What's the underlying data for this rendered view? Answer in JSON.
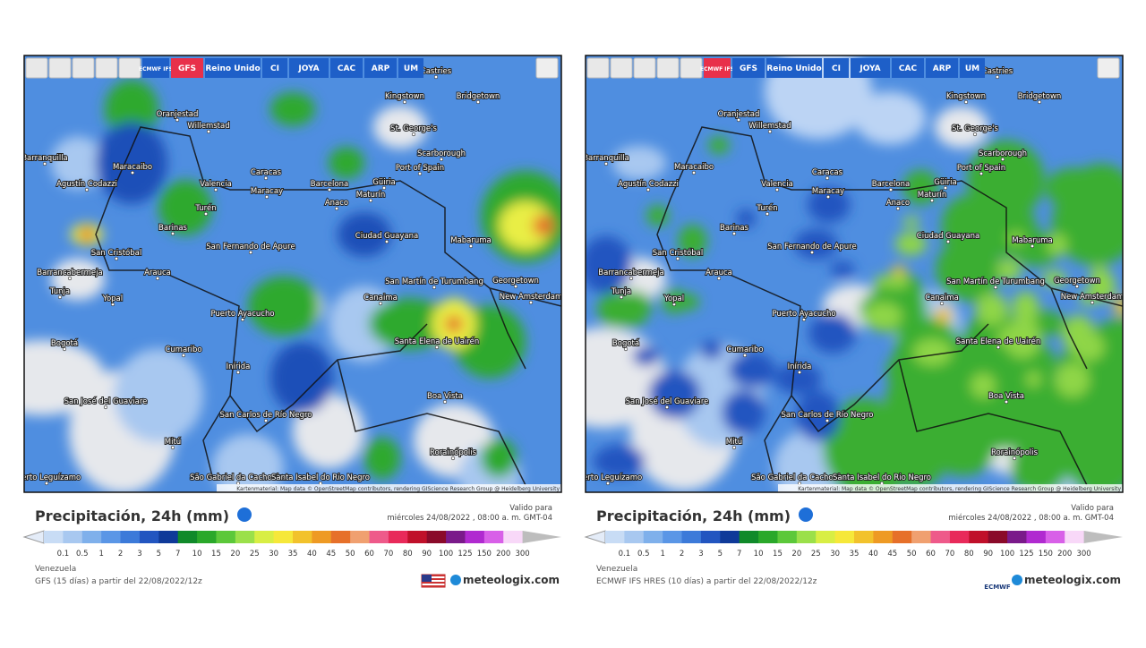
{
  "cities": [
    "Castries",
    "Kingstown",
    "Bridgetown",
    "Oranjestad",
    "Willemstad",
    "St. George's",
    "Scarborough",
    "Barranquilla",
    "Maracaibo",
    "Port of Spain",
    "Agustín Codazzi",
    "Caracas",
    "Valencia",
    "Maracay",
    "Barcelona",
    "Güiria",
    "Maturín",
    "Turén",
    "Anaco",
    "Barinas",
    "Ciudad Guayana",
    "Mabaruma",
    "San Cristóbal",
    "San Fernando de Apure",
    "Barrancabermeja",
    "Arauca",
    "San Martín de Turumbang",
    "Georgetown",
    "Canaima",
    "New Amsterdam",
    "Tunja",
    "Yopal",
    "Puerto Ayacucho",
    "Bogotá",
    "Santa Elena de Uairén",
    "Cumaribo",
    "Inírida",
    "Boa Vista",
    "San José del Guaviare",
    "San Carlos de Río Negro",
    "Mitú",
    "Rorainópolis",
    "São Gabriel da Cachoeira",
    "Santa Isabel do Rio Negro",
    "Puerto Leguízamo"
  ],
  "scale": {
    "labels": [
      "0.1",
      "0.5",
      "1",
      "2",
      "3",
      "5",
      "7",
      "10",
      "15",
      "20",
      "25",
      "30",
      "35",
      "40",
      "45",
      "50",
      "60",
      "70",
      "80",
      "90",
      "100",
      "125",
      "150",
      "200",
      "300"
    ],
    "colors": [
      "#e4ecf8",
      "#c8dcf5",
      "#a8c8f0",
      "#7fb0eb",
      "#5a96e6",
      "#3c7ad9",
      "#2255c0",
      "#0f3a99",
      "#108a2a",
      "#2aa82a",
      "#5cc83a",
      "#9be04a",
      "#d8ee44",
      "#f6e83a",
      "#f2c22c",
      "#ee9a24",
      "#e6702a",
      "#f0a070",
      "#ee5a8a",
      "#e82a5a",
      "#c0102a",
      "#8a0a2a",
      "#7a1a8a",
      "#b02ad0",
      "#d860e8",
      "#f8d8f8",
      "#bdbdbd"
    ]
  },
  "panels": [
    {
      "buttons": [
        "ECMWF IFS",
        "GFS",
        "Reino Unido",
        "CI",
        "JOYA",
        "CAC",
        "ARP",
        "UM"
      ],
      "active": 1,
      "attribution": "Kartenmaterial: Map data © OpenStreetMap contributors, rendering GIScience Research Group @ Heidelberg University",
      "title": "Precipitación, 24h (mm)",
      "valid_label": "Valido para",
      "valid_time": "miércoles 24/08/2022 , 08:00 a. m. GMT-04",
      "region": "Venezuela",
      "model": "GFS (15 días) a partir del 22/08/2022/12z",
      "brand": "meteologix.com"
    },
    {
      "buttons": [
        "ECMWF IFS",
        "GFS",
        "Reino Unido",
        "CI",
        "JOYA",
        "CAC",
        "ARP",
        "UM"
      ],
      "active": 0,
      "attribution": "Kartenmaterial: Map data © OpenStreetMap contributors, rendering GIScience Research Group @ Heidelberg University",
      "title": "Precipitación, 24h (mm)",
      "valid_label": "Valido para",
      "valid_time": "miércoles 24/08/2022 , 08:00 a. m. GMT-04",
      "region": "Venezuela",
      "model": "ECMWF IFS HRES (10 días) a partir del 22/08/2022/12z",
      "brand": "meteologix.com",
      "logo": "ECMWF"
    }
  ]
}
